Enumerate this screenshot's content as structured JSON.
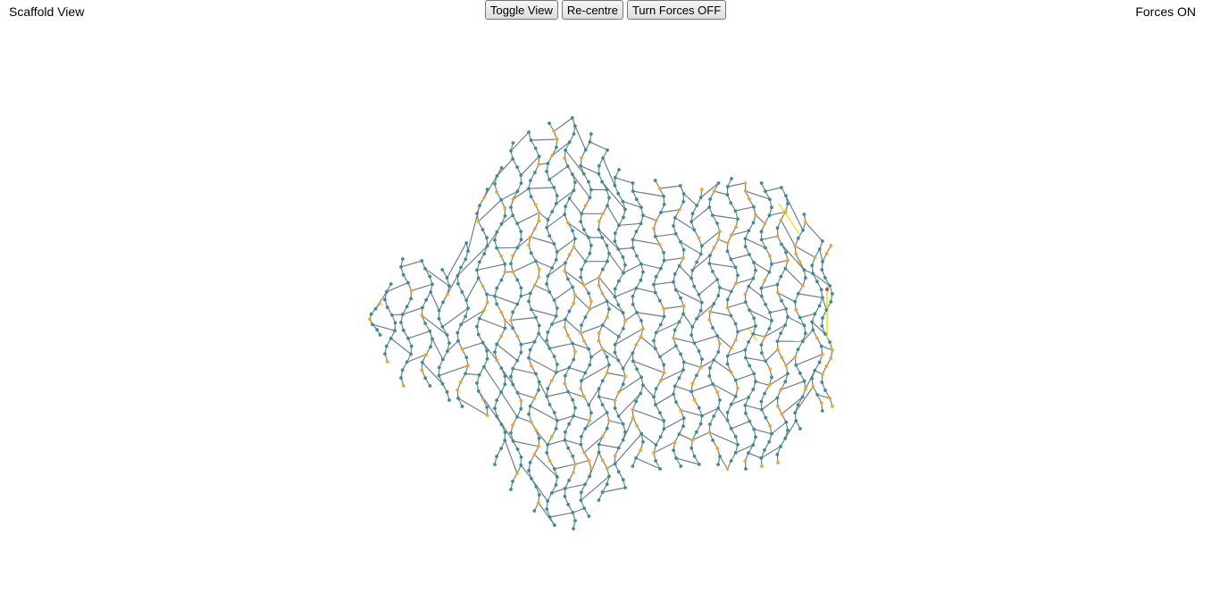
{
  "header": {
    "view_label": "Scaffold View",
    "forces_status": "Forces ON"
  },
  "toolbar": {
    "toggle_view_label": "Toggle View",
    "recentre_label": "Re-centre",
    "forces_toggle_label": "Turn Forces OFF"
  },
  "graph": {
    "node_color": "#3a8f95",
    "link_color": "#6d7f87",
    "accent_node_color": "#f5a623",
    "highlight_link_color": "#e8e81a",
    "alert_node_color": "#e0206a"
  }
}
